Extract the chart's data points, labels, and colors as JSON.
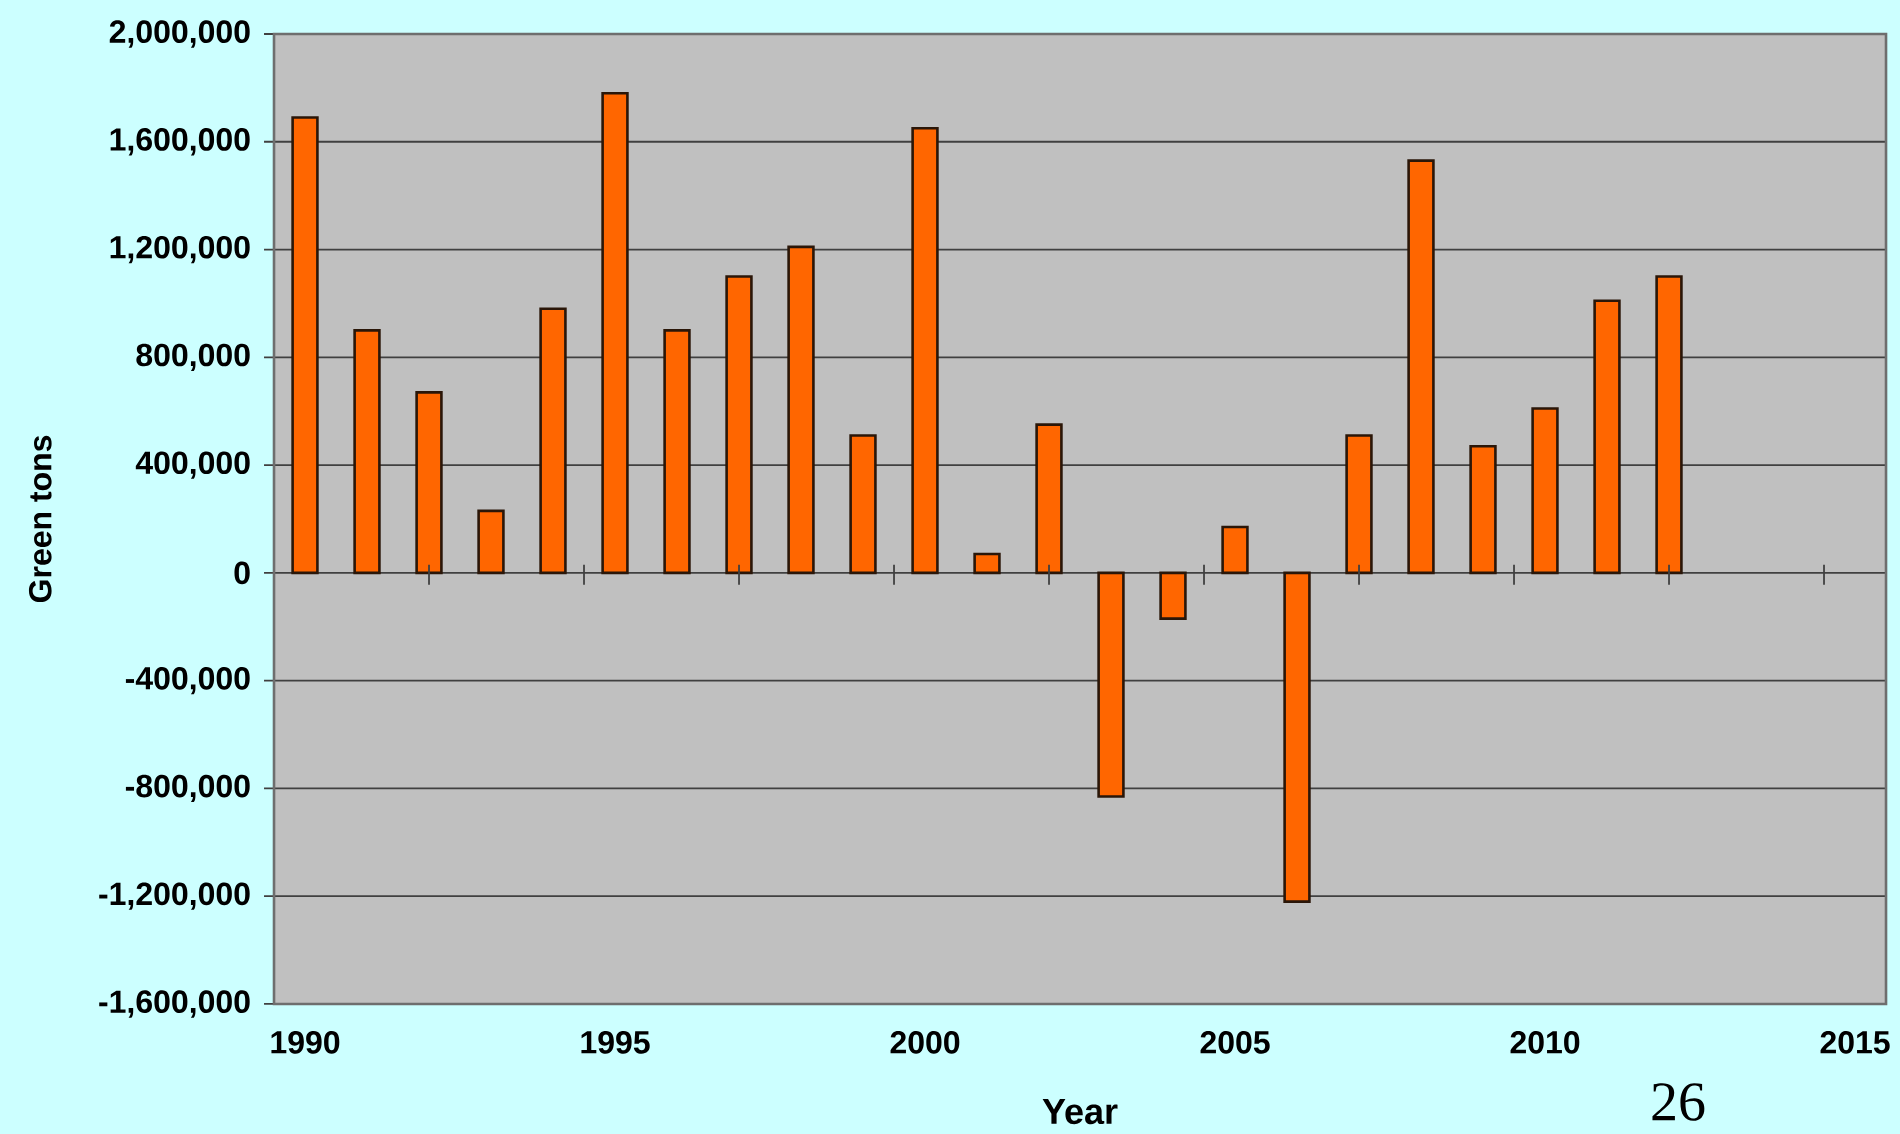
{
  "chart_data": {
    "type": "bar",
    "xlabel": "Year",
    "ylabel": "Green tons",
    "x": [
      1990,
      1991,
      1992,
      1993,
      1994,
      1995,
      1996,
      1997,
      1998,
      1999,
      2000,
      2001,
      2002,
      2003,
      2004,
      2005,
      2006,
      2007,
      2008,
      2009,
      2010,
      2011,
      2012
    ],
    "values": [
      1690000,
      900000,
      670000,
      230000,
      980000,
      1780000,
      900000,
      1100000,
      1210000,
      510000,
      1650000,
      70000,
      550000,
      -830000,
      -170000,
      170000,
      -1220000,
      510000,
      1530000,
      470000,
      610000,
      1010000,
      1100000
    ],
    "color": "#ff6600",
    "xlim": [
      1989.5,
      2015.5
    ],
    "xticks": [
      1990,
      {
        "value": 1992,
        "label": null
      },
      {
        "value": 1994.5,
        "label": null
      },
      1995,
      {
        "value": 1997,
        "label": null
      },
      {
        "value": 1999.5,
        "label": null
      },
      2000,
      {
        "value": 2002,
        "label": null
      },
      {
        "value": 2004.5,
        "label": null
      },
      2005,
      {
        "value": 2007,
        "label": null
      },
      {
        "value": 2009.5,
        "label": null
      },
      2010,
      {
        "value": 2012,
        "label": null
      },
      {
        "value": 2014.5,
        "label": null
      },
      2015
    ],
    "ylim": [
      -1600000,
      2000000
    ],
    "yticks": [
      {
        "value": -1600000,
        "label": "-1,600,000"
      },
      {
        "value": -1200000,
        "label": "-1,200,000"
      },
      {
        "value": -800000,
        "label": "-800,000"
      },
      {
        "value": -400000,
        "label": "-400,000"
      },
      0,
      {
        "value": 400000,
        "label": "400,000"
      },
      {
        "value": 800000,
        "label": "800,000"
      },
      {
        "value": 1200000,
        "label": "1,200,000"
      },
      {
        "value": 1600000,
        "label": "1,600,000"
      },
      {
        "value": 2000000,
        "label": "2,000,000"
      }
    ],
    "grid": "y",
    "annotations": [
      "26"
    ]
  }
}
